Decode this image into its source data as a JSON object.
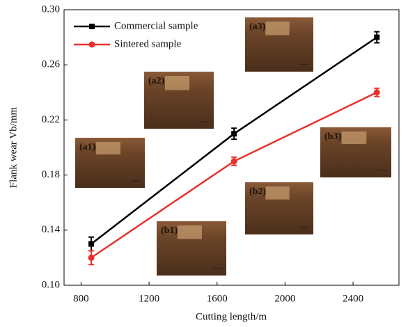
{
  "chart_data": {
    "type": "line",
    "x_label": "Cutting length/m",
    "y_label": "Flank wear Vb/mm",
    "x": [
      860,
      1700,
      2540
    ],
    "series": [
      {
        "name": "Commercial sample",
        "color": "#000000",
        "values": [
          0.13,
          0.21,
          0.28
        ],
        "errors": [
          0.005,
          0.004,
          0.004
        ]
      },
      {
        "name": "Sintered sample",
        "color": "#e8302a",
        "values": [
          0.12,
          0.19,
          0.24
        ],
        "errors": [
          0.005,
          0.003,
          0.003
        ]
      }
    ],
    "xlim": [
      700,
      2670
    ],
    "xticks": [
      800,
      1200,
      1600,
      2000,
      2400
    ],
    "ylim": [
      0.1,
      0.3
    ],
    "yticks": [
      {
        "value": 0.1,
        "label": "0.10"
      },
      {
        "value": 0.14,
        "label": "0.14"
      },
      {
        "value": 0.18,
        "label": "0.18"
      },
      {
        "value": 0.22,
        "label": "0.22"
      },
      {
        "value": 0.26,
        "label": "0.26"
      },
      {
        "value": 0.3,
        "label": "0.30"
      }
    ],
    "legend": "upper left",
    "insets": [
      "(a1)",
      "(a2)",
      "(a3)",
      "(b1)",
      "(b2)",
      "(b3)"
    ]
  }
}
